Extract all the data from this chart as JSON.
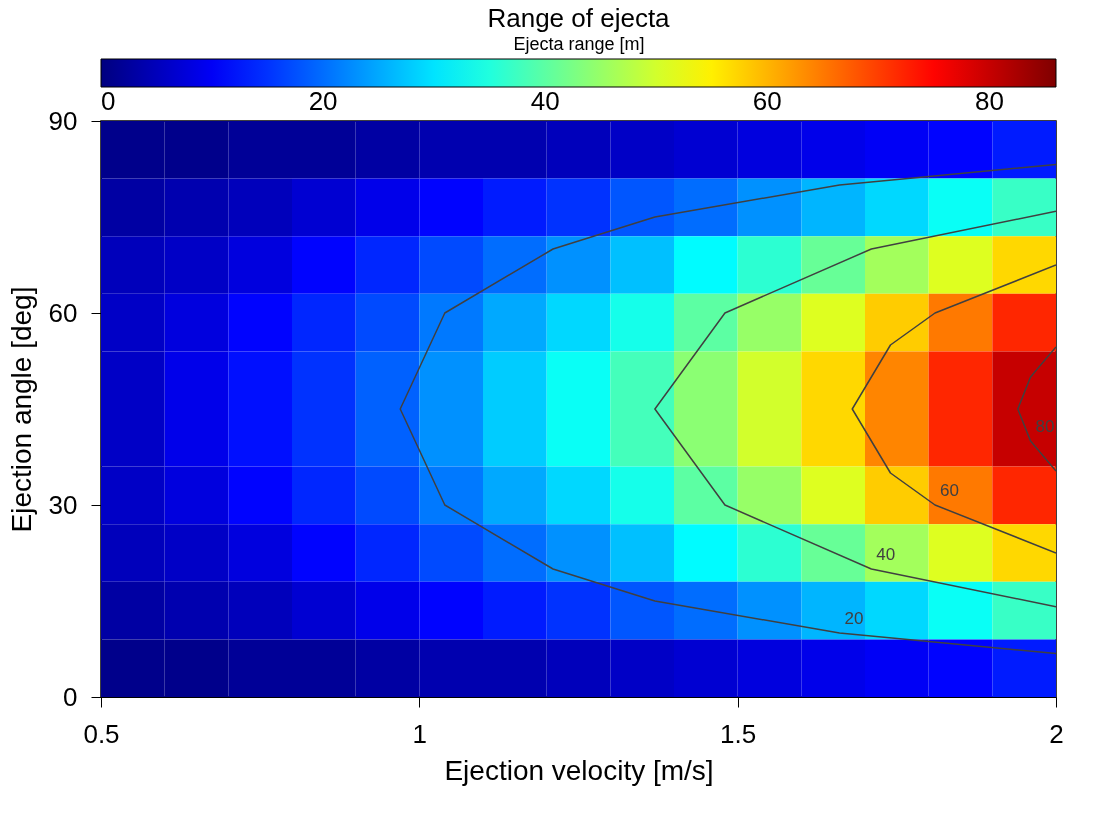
{
  "chart_data": {
    "type": "heatmap",
    "title": "Range of ejecta",
    "xlabel": "Ejection velocity [m/s]",
    "ylabel": "Ejection angle [deg]",
    "clabel": "Ejecta range [m]",
    "x": [
      0.55,
      0.65,
      0.75,
      0.85,
      0.95,
      1.05,
      1.15,
      1.25,
      1.35,
      1.45,
      1.55,
      1.65,
      1.75,
      1.85,
      1.95
    ],
    "y": [
      85.5,
      76.5,
      67.5,
      58.5,
      49.5,
      40.5,
      31.5,
      22.5,
      13.5,
      4.5
    ],
    "cells": [
      [
        1,
        1,
        2,
        2,
        3,
        4,
        4,
        5,
        6,
        7,
        8,
        9,
        10,
        11,
        13
      ],
      [
        3,
        4,
        5,
        7,
        9,
        11,
        13,
        15,
        18,
        20,
        23,
        26,
        29,
        33,
        37
      ],
      [
        5,
        6,
        8,
        11,
        14,
        17,
        20,
        23,
        27,
        32,
        36,
        41,
        46,
        51,
        57
      ],
      [
        6,
        8,
        11,
        14,
        17,
        21,
        25,
        29,
        34,
        40,
        45,
        51,
        58,
        65,
        72
      ],
      [
        6,
        9,
        12,
        15,
        19,
        23,
        28,
        33,
        38,
        44,
        50,
        57,
        64,
        72,
        80
      ],
      [
        6,
        9,
        12,
        15,
        19,
        23,
        28,
        33,
        38,
        44,
        50,
        57,
        64,
        72,
        80
      ],
      [
        6,
        8,
        11,
        14,
        17,
        21,
        25,
        29,
        34,
        40,
        45,
        51,
        58,
        65,
        72
      ],
      [
        5,
        6,
        8,
        11,
        14,
        17,
        20,
        23,
        27,
        32,
        36,
        41,
        46,
        51,
        57
      ],
      [
        3,
        4,
        5,
        7,
        9,
        11,
        13,
        15,
        18,
        20,
        23,
        26,
        29,
        33,
        37
      ],
      [
        1,
        1,
        2,
        2,
        3,
        4,
        4,
        5,
        6,
        7,
        8,
        9,
        10,
        11,
        13
      ]
    ],
    "clim": [
      0,
      86
    ],
    "cticks": [
      0,
      20,
      40,
      60,
      80
    ],
    "xlim": [
      0.5,
      2
    ],
    "xticks": [
      0.5,
      1,
      1.5,
      2
    ],
    "ylim": [
      0,
      90
    ],
    "yticks": [
      0,
      30,
      60,
      90
    ],
    "series": [
      {
        "type": "line",
        "name": "20",
        "color": "#404040",
        "x": [
          2,
          1.66,
          1.37,
          1.21,
          1.04,
          0.97,
          1.04,
          1.21,
          1.37,
          1.66,
          2
        ],
        "values": [
          6.8,
          10,
          15,
          20,
          30,
          45,
          60,
          70,
          75,
          80,
          83.2
        ]
      },
      {
        "type": "line",
        "name": "40",
        "color": "#404040",
        "x": [
          2,
          1.71,
          1.48,
          1.37,
          1.48,
          1.71,
          2
        ],
        "values": [
          14.1,
          20,
          30,
          45,
          60,
          70,
          75.9
        ]
      },
      {
        "type": "line",
        "name": "60",
        "color": "#404040",
        "x": [
          2,
          1.81,
          1.74,
          1.68,
          1.74,
          1.81,
          2
        ],
        "values": [
          22.5,
          30,
          35,
          45,
          55,
          60,
          67.5
        ]
      },
      {
        "type": "line",
        "name": "80",
        "color": "#404040",
        "x": [
          2,
          1.96,
          1.94,
          1.96,
          2
        ],
        "values": [
          35.3,
          40,
          45,
          50,
          54.7
        ]
      }
    ]
  }
}
